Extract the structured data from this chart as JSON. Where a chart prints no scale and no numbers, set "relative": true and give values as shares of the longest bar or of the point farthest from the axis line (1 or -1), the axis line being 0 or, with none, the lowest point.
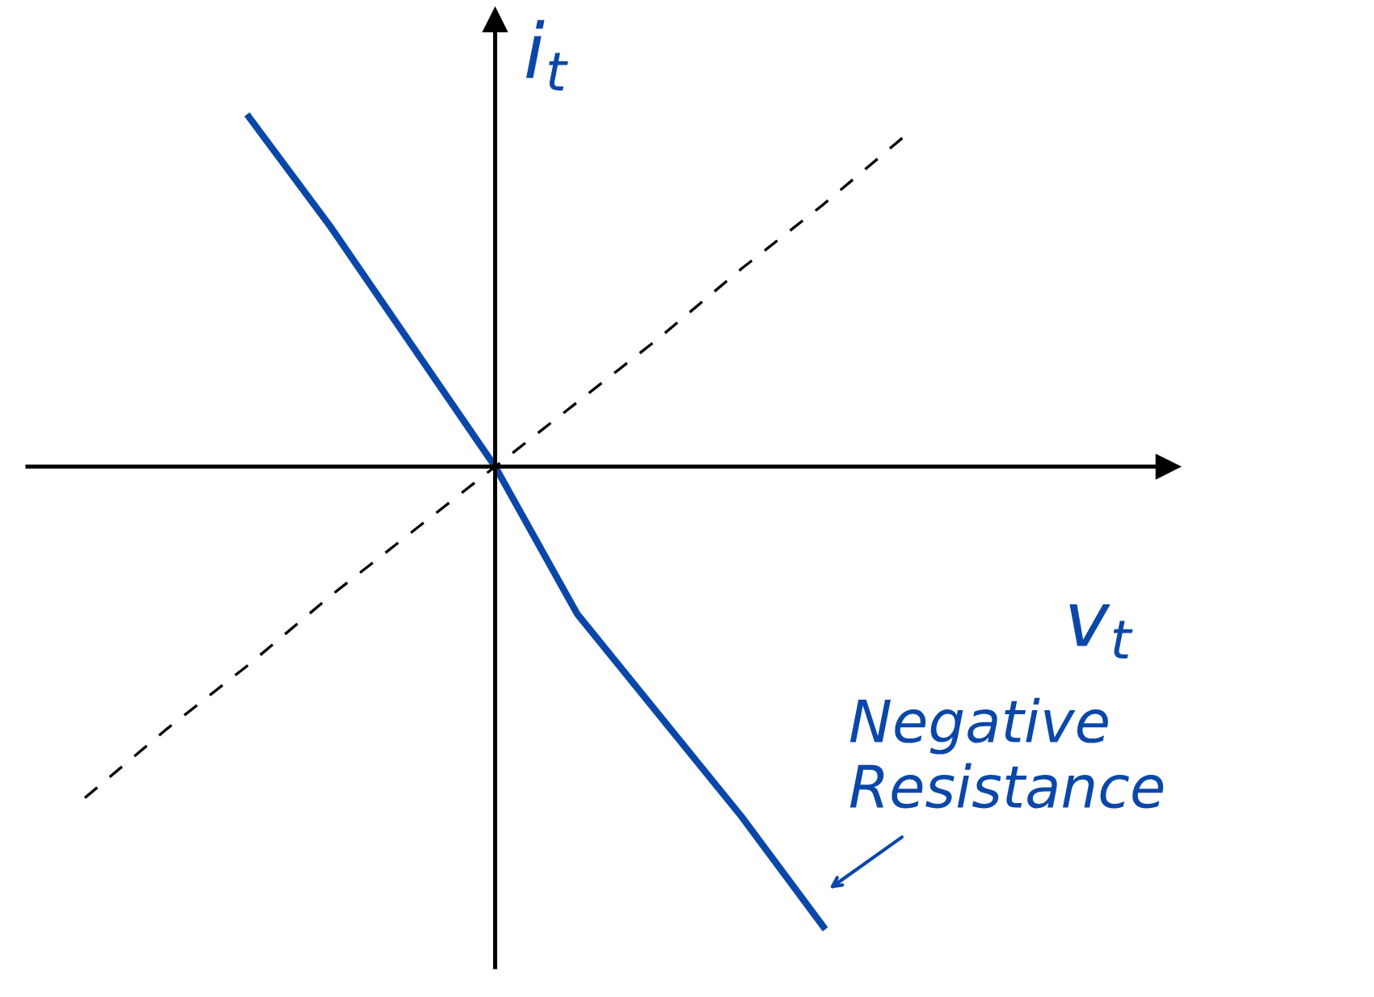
{
  "chart_data": {
    "type": "line",
    "relative": true,
    "xlabel": "v$_{t}$",
    "ylabel": "i$_{t}$",
    "legend": false,
    "marker": "none",
    "categories": [
      null,
      null,
      null,
      null,
      null,
      null,
      null,
      null,
      null,
      null,
      null
    ],
    "series": [
      {
        "color": "#0a47a9",
        "line_style": "solid",
        "values": [
          null,
          null,
          0.76,
          0.52,
          0.26,
          0,
          -0.32,
          -0.54,
          -0.76,
          -1.0,
          null
        ]
      },
      {
        "color": "#000000",
        "line_style": "dashed",
        "values": [
          -0.72,
          -0.57,
          -0.43,
          -0.28,
          -0.14,
          0,
          0.14,
          0.28,
          0.43,
          0.57,
          0.72
        ]
      }
    ],
    "annotations": [
      "Negative\nResistance"
    ]
  }
}
